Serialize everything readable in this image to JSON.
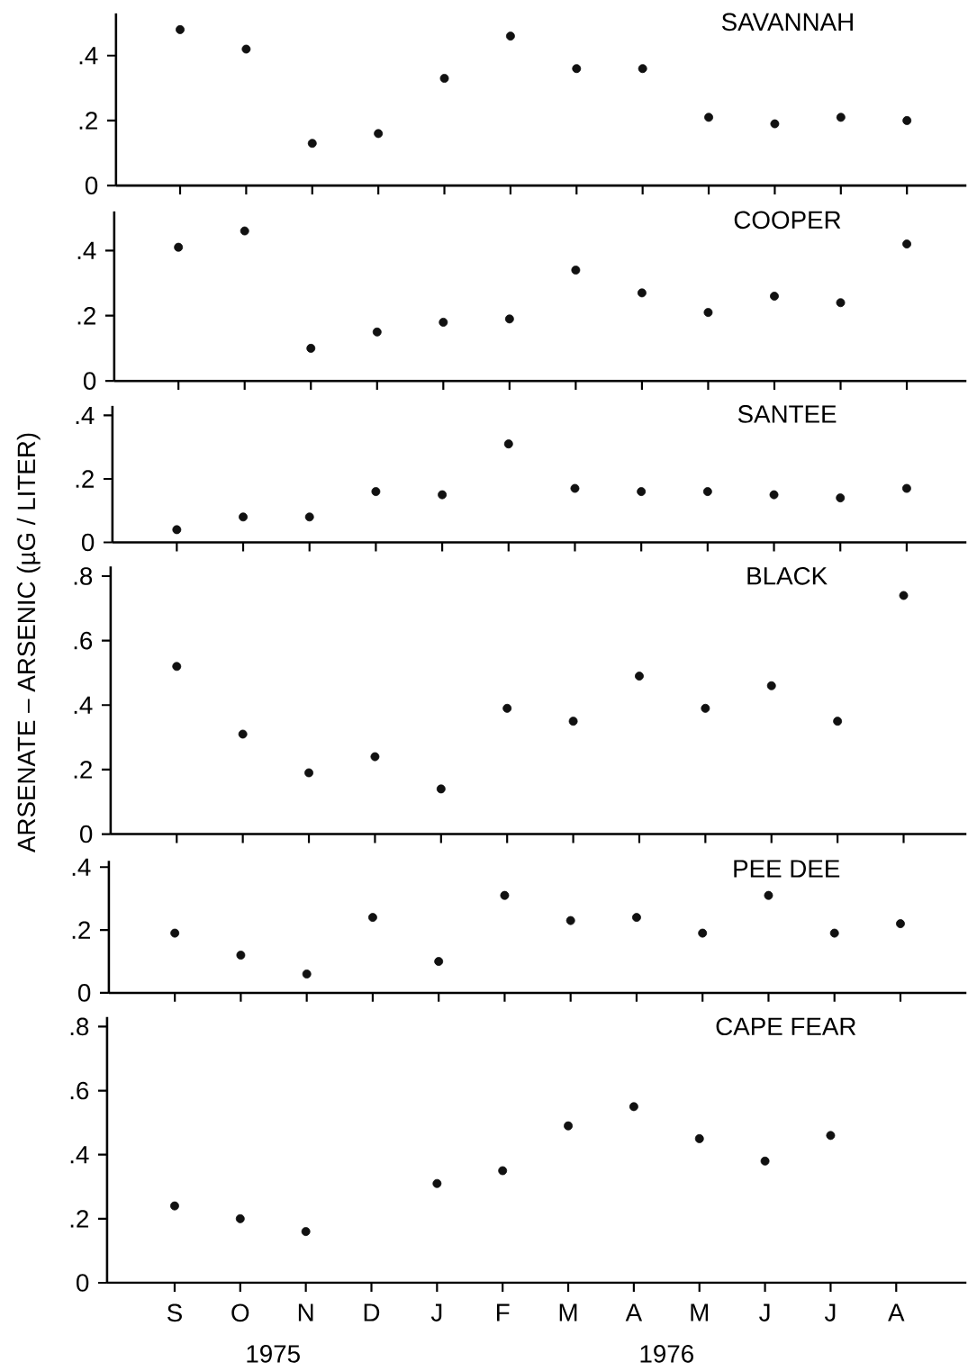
{
  "chart_data": [
    {
      "type": "scatter",
      "title": "SAVANNAH",
      "categories": [
        null,
        null,
        null,
        null,
        null,
        null,
        null,
        null,
        null,
        null,
        null,
        null
      ],
      "values": [
        0.48,
        0.42,
        0.13,
        0.16,
        0.33,
        0.46,
        0.36,
        0.36,
        0.21,
        0.19,
        0.21,
        0.2
      ],
      "color": "#111111",
      "marker": "circle",
      "ylim": [
        0,
        0.53
      ],
      "yticks": [
        0,
        {
          "value": 0.2,
          "label": ".2"
        },
        {
          "value": 0.4,
          "label": ".4"
        }
      ],
      "tick_labels": "y"
    },
    {
      "type": "scatter",
      "title": "COOPER",
      "categories": [
        null,
        null,
        null,
        null,
        null,
        null,
        null,
        null,
        null,
        null,
        null,
        null
      ],
      "values": [
        0.41,
        0.46,
        0.1,
        0.15,
        0.18,
        0.19,
        0.34,
        0.27,
        0.21,
        0.26,
        0.24,
        0.42
      ],
      "color": "#111111",
      "marker": "circle",
      "ylim": [
        0,
        0.52
      ],
      "yticks": [
        0,
        {
          "value": 0.2,
          "label": ".2"
        },
        {
          "value": 0.4,
          "label": ".4"
        }
      ],
      "tick_labels": "y"
    },
    {
      "type": "scatter",
      "title": "SANTEE",
      "categories": [
        null,
        null,
        null,
        null,
        null,
        null,
        null,
        null,
        null,
        null,
        null,
        null
      ],
      "values": [
        0.04,
        0.08,
        0.08,
        0.16,
        0.15,
        0.31,
        0.17,
        0.16,
        0.16,
        0.15,
        0.14,
        0.17
      ],
      "color": "#111111",
      "marker": "circle",
      "ylim": [
        0,
        0.43
      ],
      "yticks": [
        0,
        {
          "value": 0.2,
          "label": ".2"
        },
        {
          "value": 0.4,
          "label": ".4"
        }
      ],
      "tick_labels": "y"
    },
    {
      "type": "scatter",
      "title": "BLACK",
      "ylabel": "ARSENATE – ARSENIC (µG / LITER)",
      "categories": [
        null,
        null,
        null,
        null,
        null,
        null,
        null,
        null,
        null,
        null,
        null,
        null
      ],
      "values": [
        0.52,
        0.31,
        0.19,
        0.24,
        0.14,
        0.39,
        0.35,
        0.49,
        0.39,
        0.46,
        0.35,
        0.74
      ],
      "color": "#111111",
      "marker": "circle",
      "ylim": [
        0,
        0.83
      ],
      "yticks": [
        0,
        {
          "value": 0.2,
          "label": ".2"
        },
        {
          "value": 0.4,
          "label": ".4"
        },
        {
          "value": 0.6,
          "label": ".6"
        },
        {
          "value": 0.8,
          "label": ".8"
        }
      ],
      "tick_labels": "y"
    },
    {
      "type": "scatter",
      "title": "PEE DEE",
      "categories": [
        null,
        null,
        null,
        null,
        null,
        null,
        null,
        null,
        null,
        null,
        null,
        null
      ],
      "values": [
        0.19,
        0.12,
        0.06,
        0.24,
        0.1,
        0.31,
        0.23,
        0.24,
        0.19,
        0.31,
        0.19,
        0.22
      ],
      "color": "#111111",
      "marker": "circle",
      "ylim": [
        0,
        0.42
      ],
      "yticks": [
        0,
        {
          "value": 0.2,
          "label": ".2"
        },
        {
          "value": 0.4,
          "label": ".4"
        }
      ],
      "tick_labels": "y"
    },
    {
      "type": "scatter",
      "title": "CAPE FEAR",
      "categories": [
        "S",
        "O",
        "N",
        "D",
        "J",
        "F",
        "M",
        "A",
        "M",
        "J",
        "J",
        "A"
      ],
      "values": [
        0.24,
        0.2,
        0.16,
        null,
        0.31,
        0.35,
        0.49,
        0.55,
        0.45,
        0.38,
        0.46,
        null
      ],
      "color": "#111111",
      "marker": "circle",
      "ylim": [
        0,
        0.83
      ],
      "yticks": [
        0,
        {
          "value": 0.2,
          "label": ".2"
        },
        {
          "value": 0.4,
          "label": ".4"
        },
        {
          "value": 0.6,
          "label": ".6"
        },
        {
          "value": 0.8,
          "label": ".8"
        }
      ],
      "annotations": [
        "1975",
        "1976"
      ]
    }
  ]
}
